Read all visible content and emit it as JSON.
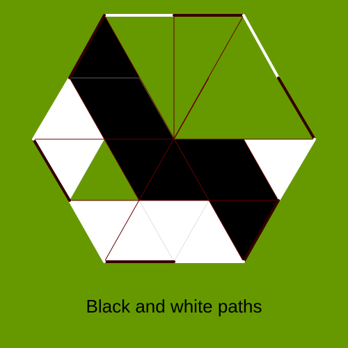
{
  "caption": "Black and white paths",
  "colors": {
    "background": "#669900",
    "black_tile": "#000000",
    "white_tile": "#ffffff",
    "grid_line": "#660000",
    "edge_dark": "#330000",
    "edge_light": "#ffffff"
  },
  "board": {
    "shape": "hexagon",
    "tiles": [
      {
        "id": "tile-top-right",
        "color": "empty"
      },
      {
        "id": "tile-top-left",
        "color": "black"
      },
      {
        "id": "tile-left",
        "color": "white"
      },
      {
        "id": "tile-center-left",
        "color": "black"
      },
      {
        "id": "tile-center-right",
        "color": "black"
      },
      {
        "id": "tile-right",
        "color": "white"
      },
      {
        "id": "tile-bottom-left",
        "color": "white"
      },
      {
        "id": "tile-bottom-center",
        "color": "white"
      },
      {
        "id": "tile-bottom-right",
        "color": "black"
      }
    ]
  }
}
